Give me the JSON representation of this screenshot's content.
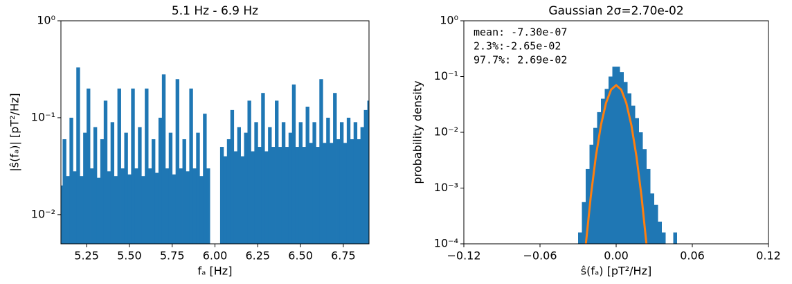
{
  "chart_data": [
    {
      "type": "bar",
      "title": "5.1 Hz - 6.9 Hz",
      "x_label": "fₐ [Hz]",
      "y_label": "|ŝ(fₐ)| [pT²/Hz]",
      "color": "#1f77b4",
      "log_y": true,
      "x": [
        5.1,
        5.12,
        5.14,
        5.16,
        5.18,
        5.2,
        5.22,
        5.24,
        5.26,
        5.28,
        5.3,
        5.32,
        5.34,
        5.36,
        5.38,
        5.4,
        5.42,
        5.44,
        5.46,
        5.48,
        5.5,
        5.52,
        5.54,
        5.56,
        5.58,
        5.6,
        5.62,
        5.64,
        5.66,
        5.68,
        5.7,
        5.72,
        5.74,
        5.76,
        5.78,
        5.8,
        5.82,
        5.84,
        5.86,
        5.88,
        5.9,
        5.92,
        5.94,
        5.96,
        5.98,
        6.0,
        6.02,
        6.04,
        6.06,
        6.08,
        6.1,
        6.12,
        6.14,
        6.16,
        6.18,
        6.2,
        6.22,
        6.24,
        6.26,
        6.28,
        6.3,
        6.32,
        6.34,
        6.36,
        6.38,
        6.4,
        6.42,
        6.44,
        6.46,
        6.48,
        6.5,
        6.52,
        6.54,
        6.56,
        6.58,
        6.6,
        6.62,
        6.64,
        6.66,
        6.68,
        6.7,
        6.72,
        6.74,
        6.76,
        6.78,
        6.8,
        6.82,
        6.84,
        6.86,
        6.88,
        6.9
      ],
      "values": [
        0.02,
        0.06,
        0.025,
        0.1,
        0.028,
        0.33,
        0.025,
        0.07,
        0.2,
        0.03,
        0.08,
        0.024,
        0.06,
        0.15,
        0.028,
        0.09,
        0.025,
        0.2,
        0.03,
        0.07,
        0.026,
        0.2,
        0.03,
        0.08,
        0.025,
        0.2,
        0.03,
        0.06,
        0.027,
        0.1,
        0.28,
        0.03,
        0.07,
        0.026,
        0.25,
        0.03,
        0.06,
        0.028,
        0.2,
        0.03,
        0.07,
        0.025,
        0.11,
        0.03,
        null,
        null,
        null,
        0.05,
        0.04,
        0.06,
        0.12,
        0.045,
        0.08,
        0.04,
        0.07,
        0.15,
        0.045,
        0.09,
        0.05,
        0.18,
        0.045,
        0.08,
        0.05,
        0.15,
        0.05,
        0.09,
        0.05,
        0.07,
        0.22,
        0.05,
        0.09,
        0.05,
        0.13,
        0.055,
        0.09,
        0.05,
        0.25,
        0.055,
        0.1,
        0.055,
        0.18,
        0.06,
        0.09,
        0.055,
        0.1,
        0.06,
        0.09,
        0.06,
        0.08,
        0.12,
        0.15
      ],
      "xlim": [
        5.1,
        6.9
      ],
      "xticks": [
        5.25,
        {
          "value": 5.5,
          "label": "5.50"
        },
        5.75,
        {
          "value": 6.0,
          "label": "6.00"
        },
        6.25,
        {
          "value": 6.5,
          "label": "6.50"
        },
        6.75
      ],
      "ylim": [
        0.005,
        1
      ],
      "yticks": [
        {
          "value": 0.01,
          "label": "10⁻²"
        },
        {
          "value": 0.1,
          "label": "10⁻¹"
        },
        {
          "value": 1,
          "label": "10⁰"
        }
      ]
    },
    {
      "type": "histogram",
      "title": "Gaussian 2σ=2.70e-02",
      "x_label": "ŝ(fₐ) [pT²/Hz]",
      "y_label": "probability density",
      "color": "#1f77b4",
      "log_y": true,
      "bins": [
        -0.03,
        -0.027,
        -0.024,
        -0.021,
        -0.018,
        -0.015,
        -0.012,
        -0.009,
        -0.006,
        -0.003,
        0.0,
        0.003,
        0.006,
        0.009,
        0.012,
        0.015,
        0.018,
        0.021,
        0.024,
        0.027,
        0.03,
        0.033,
        0.036,
        0.039,
        0.042,
        0.045,
        0.048
      ],
      "values": [
        0.00016,
        0.00056,
        0.0022,
        0.006,
        0.012,
        0.023,
        0.04,
        0.06,
        0.1,
        0.15,
        0.15,
        0.12,
        0.08,
        0.05,
        0.03,
        0.018,
        0.01,
        0.005,
        0.0022,
        0.0008,
        0.0005,
        0.00025,
        0.00016,
        0.0001,
        0,
        0.00016
      ],
      "curve": {
        "color": "#ff7f0e",
        "x": [
          -0.024,
          -0.02,
          -0.016,
          -0.012,
          -0.008,
          -0.004,
          0,
          0.004,
          0.008,
          0.012,
          0.016,
          0.02,
          0.024
        ],
        "values": [
          9.3e-05,
          0.000705,
          0.00369,
          0.0134,
          0.0335,
          0.0582,
          0.07,
          0.0582,
          0.0335,
          0.0134,
          0.00369,
          0.000705,
          9.3e-05
        ]
      },
      "annotations": [
        "mean: -7.30e-07",
        "2.3%:-2.65e-02",
        "97.7%: 2.69e-02"
      ],
      "xlim": [
        -0.12,
        0.12
      ],
      "xticks": [
        {
          "value": -0.12,
          "label": "−0.12"
        },
        {
          "value": -0.06,
          "label": "−0.06"
        },
        {
          "value": 0,
          "label": "0.00"
        },
        0.06,
        0.12
      ],
      "ylim": [
        0.0001,
        1
      ],
      "yticks": [
        {
          "value": 0.0001,
          "label": "10⁻⁴"
        },
        {
          "value": 0.001,
          "label": "10⁻³"
        },
        {
          "value": 0.01,
          "label": "10⁻²"
        },
        {
          "value": 0.1,
          "label": "10⁻¹"
        },
        {
          "value": 1,
          "label": "10⁰"
        }
      ]
    }
  ]
}
